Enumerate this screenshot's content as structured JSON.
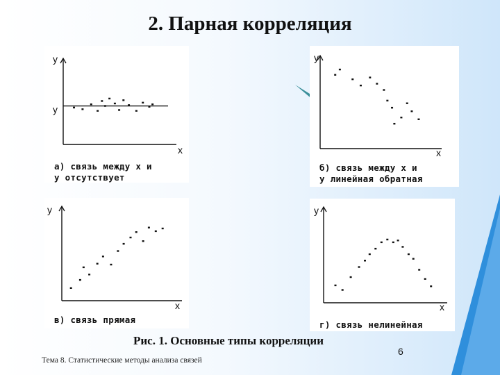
{
  "title": "2. Парная корреляция",
  "caption": "Рис. 1. Основные типы корреляции",
  "footer": "Тема 8. Статистические методы анализа связей",
  "page_number": "6",
  "accent_color": "#cfe3f8",
  "chart_data": [
    {
      "type": "scatter",
      "xlabel": "x",
      "ylabel": "y",
      "hline_label": "y",
      "label_lines": [
        "а) связь между x и",
        "y отсутствует"
      ],
      "points": [
        [
          1.0,
          4.5
        ],
        [
          1.8,
          4.3
        ],
        [
          2.6,
          4.9
        ],
        [
          3.2,
          4.1
        ],
        [
          3.6,
          5.3
        ],
        [
          3.9,
          4.7
        ],
        [
          4.3,
          5.6
        ],
        [
          4.8,
          5.0
        ],
        [
          5.2,
          4.2
        ],
        [
          5.6,
          5.4
        ],
        [
          6.1,
          4.8
        ],
        [
          6.8,
          4.1
        ],
        [
          7.4,
          5.1
        ],
        [
          8.0,
          4.6
        ],
        [
          8.3,
          4.9
        ]
      ]
    },
    {
      "type": "scatter",
      "xlabel": "x",
      "ylabel": "y",
      "label_lines": [
        "б) связь между x и",
        "y линейная обратная"
      ],
      "points": [
        [
          1.3,
          8.3
        ],
        [
          1.7,
          8.9
        ],
        [
          2.8,
          7.8
        ],
        [
          3.5,
          7.1
        ],
        [
          4.3,
          8.0
        ],
        [
          4.9,
          7.3
        ],
        [
          5.5,
          6.6
        ],
        [
          5.8,
          5.4
        ],
        [
          6.2,
          4.6
        ],
        [
          7.0,
          3.5
        ],
        [
          7.5,
          5.1
        ],
        [
          7.9,
          4.2
        ],
        [
          8.5,
          3.3
        ],
        [
          6.4,
          2.8
        ]
      ]
    },
    {
      "type": "scatter",
      "xlabel": "x",
      "ylabel": "y",
      "label_lines": [
        "в) связь прямая"
      ],
      "points": [
        [
          0.8,
          1.4
        ],
        [
          1.6,
          2.3
        ],
        [
          1.9,
          3.7
        ],
        [
          2.4,
          2.9
        ],
        [
          3.1,
          4.1
        ],
        [
          3.6,
          4.9
        ],
        [
          4.3,
          4.0
        ],
        [
          4.9,
          5.5
        ],
        [
          5.4,
          6.3
        ],
        [
          6.0,
          7.0
        ],
        [
          6.5,
          7.6
        ],
        [
          7.1,
          6.6
        ],
        [
          7.6,
          8.1
        ],
        [
          8.2,
          7.7
        ],
        [
          8.8,
          8.0
        ]
      ]
    },
    {
      "type": "scatter",
      "xlabel": "x",
      "ylabel": "y",
      "label_lines": [
        "г) связь нелинейная"
      ],
      "points": [
        [
          1.0,
          1.9
        ],
        [
          1.6,
          1.4
        ],
        [
          2.3,
          2.8
        ],
        [
          3.0,
          3.9
        ],
        [
          3.5,
          4.6
        ],
        [
          3.9,
          5.3
        ],
        [
          4.4,
          5.9
        ],
        [
          4.9,
          6.6
        ],
        [
          5.4,
          6.9
        ],
        [
          5.9,
          6.6
        ],
        [
          6.3,
          6.8
        ],
        [
          6.7,
          6.1
        ],
        [
          7.2,
          5.3
        ],
        [
          7.6,
          4.8
        ],
        [
          8.1,
          3.6
        ],
        [
          8.6,
          2.6
        ],
        [
          9.1,
          1.8
        ]
      ]
    }
  ]
}
